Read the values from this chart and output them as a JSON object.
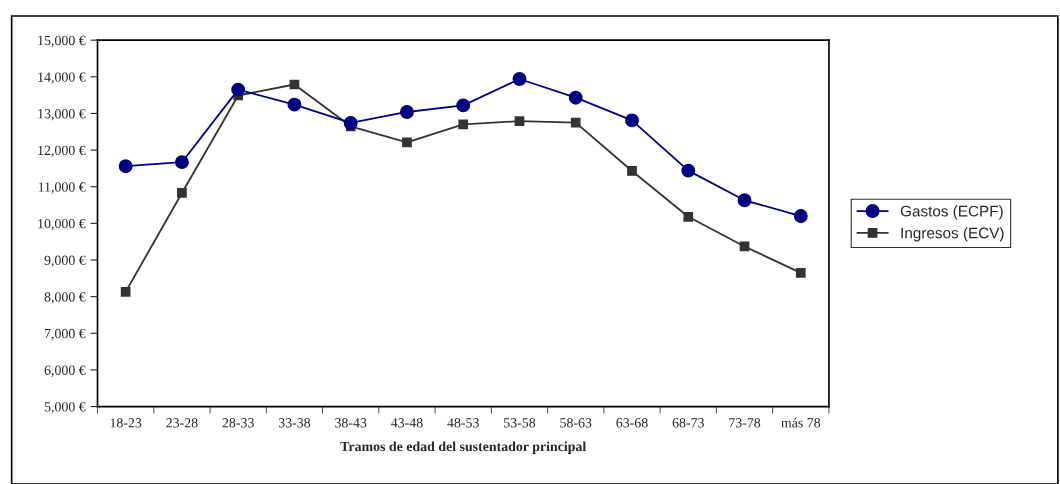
{
  "chart_data": {
    "type": "line",
    "xlabel": "Tramos de edad del sustentador principal",
    "categories": [
      "18-23",
      "23-28",
      "28-33",
      "33-38",
      "38-43",
      "43-48",
      "48-53",
      "53-58",
      "58-63",
      "63-68",
      "68-73",
      "73-78",
      "más 78"
    ],
    "series": [
      {
        "name": "Gastos (ECPF)",
        "color": "#000080",
        "marker": "circle",
        "values": [
          11560,
          11670,
          13650,
          13240,
          12740,
          13040,
          13220,
          13940,
          13430,
          12810,
          11440,
          10630,
          10200
        ]
      },
      {
        "name": "Ingresos (ECV)",
        "color": "#333333",
        "marker": "square",
        "values": [
          8130,
          10830,
          13490,
          13790,
          12650,
          12210,
          12700,
          12790,
          12750,
          11430,
          10180,
          9370,
          8650
        ]
      }
    ],
    "ylim": [
      5000,
      15000
    ],
    "yticks": [
      {
        "value": 5000,
        "label": "5,000 €"
      },
      {
        "value": 6000,
        "label": "6,000 €"
      },
      {
        "value": 7000,
        "label": "7,000 €"
      },
      {
        "value": 8000,
        "label": "8,000 €"
      },
      {
        "value": 9000,
        "label": "9,000 €"
      },
      {
        "value": 10000,
        "label": "10,000 €"
      },
      {
        "value": 11000,
        "label": "11,000 €"
      },
      {
        "value": 12000,
        "label": "12,000 €"
      },
      {
        "value": 13000,
        "label": "13,000 €"
      },
      {
        "value": 14000,
        "label": "14,000 €"
      },
      {
        "value": 15000,
        "label": "15,000 €"
      }
    ],
    "grid": false,
    "legend": "right"
  }
}
